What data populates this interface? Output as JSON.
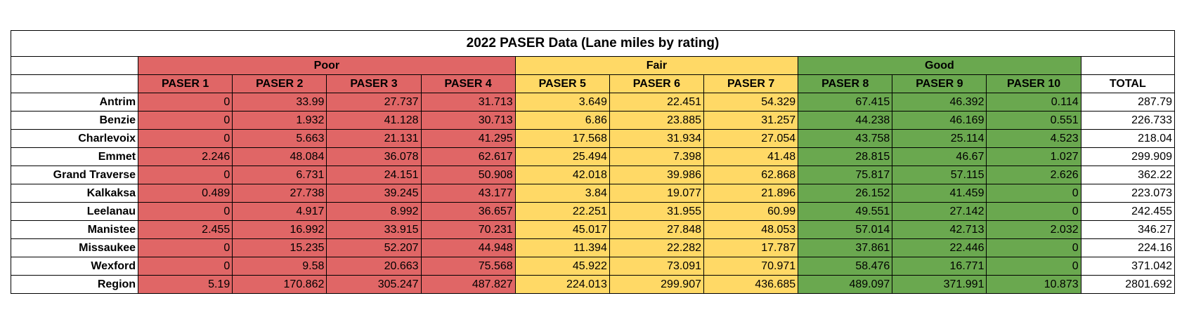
{
  "title": "2022 PASER Data (Lane miles by rating)",
  "groups": {
    "poor": "Poor",
    "fair": "Fair",
    "good": "Good"
  },
  "colors": {
    "poor": "#e06666",
    "fair": "#ffd966",
    "good": "#6aa84f"
  },
  "columns": [
    "PASER 1",
    "PASER 2",
    "PASER 3",
    "PASER 4",
    "PASER 5",
    "PASER 6",
    "PASER 7",
    "PASER 8",
    "PASER 9",
    "PASER 10",
    "TOTAL"
  ],
  "rows": [
    {
      "label": "Antrim",
      "values": [
        "0",
        "33.99",
        "27.737",
        "31.713",
        "3.649",
        "22.451",
        "54.329",
        "67.415",
        "46.392",
        "0.114",
        "287.79"
      ]
    },
    {
      "label": "Benzie",
      "values": [
        "0",
        "1.932",
        "41.128",
        "30.713",
        "6.86",
        "23.885",
        "31.257",
        "44.238",
        "46.169",
        "0.551",
        "226.733"
      ]
    },
    {
      "label": "Charlevoix",
      "values": [
        "0",
        "5.663",
        "21.131",
        "41.295",
        "17.568",
        "31.934",
        "27.054",
        "43.758",
        "25.114",
        "4.523",
        "218.04"
      ]
    },
    {
      "label": "Emmet",
      "values": [
        "2.246",
        "48.084",
        "36.078",
        "62.617",
        "25.494",
        "7.398",
        "41.48",
        "28.815",
        "46.67",
        "1.027",
        "299.909"
      ]
    },
    {
      "label": "Grand Traverse",
      "values": [
        "0",
        "6.731",
        "24.151",
        "50.908",
        "42.018",
        "39.986",
        "62.868",
        "75.817",
        "57.115",
        "2.626",
        "362.22"
      ]
    },
    {
      "label": "Kalkaksa",
      "values": [
        "0.489",
        "27.738",
        "39.245",
        "43.177",
        "3.84",
        "19.077",
        "21.896",
        "26.152",
        "41.459",
        "0",
        "223.073"
      ]
    },
    {
      "label": "Leelanau",
      "values": [
        "0",
        "4.917",
        "8.992",
        "36.657",
        "22.251",
        "31.955",
        "60.99",
        "49.551",
        "27.142",
        "0",
        "242.455"
      ]
    },
    {
      "label": "Manistee",
      "values": [
        "2.455",
        "16.992",
        "33.915",
        "70.231",
        "45.017",
        "27.848",
        "48.053",
        "57.014",
        "42.713",
        "2.032",
        "346.27"
      ]
    },
    {
      "label": "Missaukee",
      "values": [
        "0",
        "15.235",
        "52.207",
        "44.948",
        "11.394",
        "22.282",
        "17.787",
        "37.861",
        "22.446",
        "0",
        "224.16"
      ]
    },
    {
      "label": "Wexford",
      "values": [
        "0",
        "9.58",
        "20.663",
        "75.568",
        "45.922",
        "73.091",
        "70.971",
        "58.476",
        "16.771",
        "0",
        "371.042"
      ]
    },
    {
      "label": "Region",
      "values": [
        "5.19",
        "170.862",
        "305.247",
        "487.827",
        "224.013",
        "299.907",
        "436.685",
        "489.097",
        "371.991",
        "10.873",
        "2801.692"
      ]
    }
  ]
}
